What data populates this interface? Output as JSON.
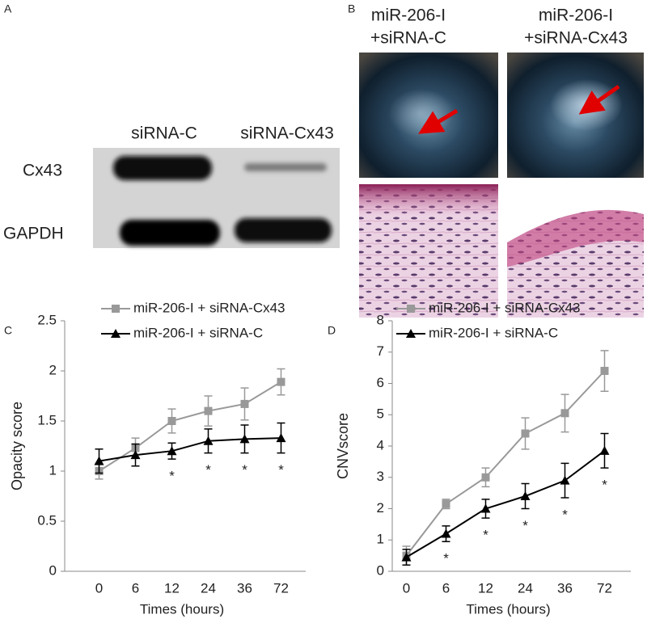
{
  "panels": {
    "A": {
      "label": "A",
      "columns": [
        "siRNA-C",
        "siRNA-Cx43"
      ],
      "rows": [
        "Cx43",
        "GAPDH"
      ]
    },
    "B": {
      "label": "B",
      "columns": [
        [
          "miR-206-I",
          "+siRNA-C"
        ],
        [
          "miR-206-I",
          "+siRNA-Cx43"
        ]
      ]
    }
  },
  "chart_data": [
    {
      "type": "line",
      "panel_label": "C",
      "x_label": "Times (hours)",
      "y_label": "Opacity score",
      "categories": [
        "0",
        "6",
        "12",
        "24",
        "36",
        "72"
      ],
      "ylim": [
        0,
        2.5
      ],
      "yticks": [
        0,
        0.5,
        1,
        1.5,
        2,
        2.5
      ],
      "series": [
        {
          "name": "miR-206-I + siRNA-Cx43",
          "color": "#999999",
          "marker": "square",
          "values": [
            1.0,
            1.23,
            1.5,
            1.6,
            1.67,
            1.89
          ],
          "errors": [
            0.08,
            0.1,
            0.12,
            0.15,
            0.16,
            0.13
          ]
        },
        {
          "name": "miR-206-I + siRNA-C",
          "color": "#000000",
          "marker": "triangle",
          "values": [
            1.1,
            1.16,
            1.2,
            1.3,
            1.32,
            1.33
          ],
          "errors": [
            0.12,
            0.11,
            0.08,
            0.12,
            0.14,
            0.15
          ]
        }
      ],
      "annotations": [
        {
          "text": "*",
          "category": "12"
        },
        {
          "text": "*",
          "category": "24"
        },
        {
          "text": "*",
          "category": "36"
        },
        {
          "text": "*",
          "category": "72"
        }
      ]
    },
    {
      "type": "line",
      "panel_label": "D",
      "x_label": "Times (hours)",
      "y_label": "CNVscore",
      "categories": [
        "0",
        "6",
        "12",
        "24",
        "36",
        "72"
      ],
      "ylim": [
        0,
        8
      ],
      "yticks": [
        0,
        1,
        2,
        3,
        4,
        5,
        6,
        7,
        8
      ],
      "series": [
        {
          "name": "miR-206-I + siRNA-Cx43",
          "color": "#999999",
          "marker": "square",
          "values": [
            0.5,
            2.15,
            3.0,
            4.4,
            5.05,
            6.4
          ],
          "errors": [
            0.3,
            0.15,
            0.3,
            0.5,
            0.6,
            0.65
          ]
        },
        {
          "name": "miR-206-I + siRNA-C",
          "color": "#000000",
          "marker": "triangle",
          "values": [
            0.45,
            1.2,
            2.0,
            2.4,
            2.9,
            3.85
          ],
          "errors": [
            0.25,
            0.25,
            0.3,
            0.4,
            0.55,
            0.55
          ]
        }
      ],
      "annotations": [
        {
          "text": "*",
          "category": "6"
        },
        {
          "text": "*",
          "category": "12"
        },
        {
          "text": "*",
          "category": "24"
        },
        {
          "text": "*",
          "category": "36"
        },
        {
          "text": "*",
          "category": "72"
        }
      ]
    }
  ]
}
